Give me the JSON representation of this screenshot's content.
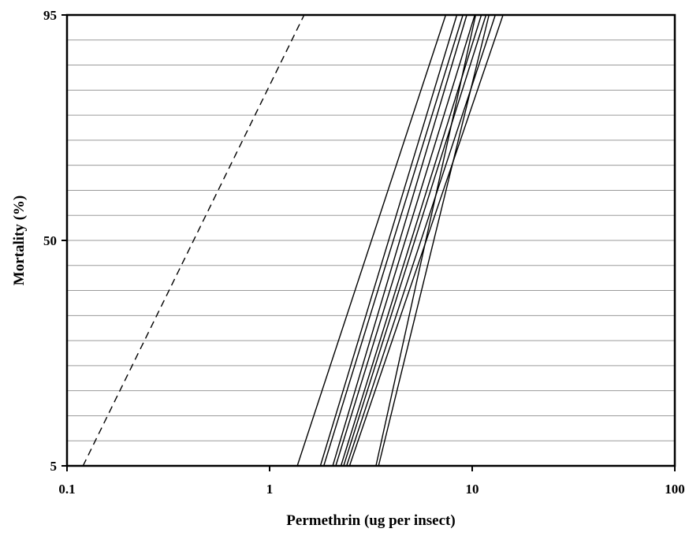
{
  "chart_data": {
    "type": "line",
    "xlabel": "Permethrin (ug per insect)",
    "ylabel": "Mortality (%)",
    "x_scale": "log",
    "xlim": [
      0.1,
      100
    ],
    "ylim": [
      5,
      95
    ],
    "x_ticks": [
      "0.1",
      "1",
      "10",
      "100"
    ],
    "y_ticks": [
      "5",
      "50",
      "95"
    ],
    "grid": "horizontal",
    "legend": "none",
    "series": [
      {
        "style": "dashed",
        "points": [
          [
            0.12,
            5
          ],
          [
            1.48,
            95
          ]
        ]
      },
      {
        "style": "solid",
        "points": [
          [
            1.37,
            5
          ],
          [
            7.4,
            95
          ]
        ]
      },
      {
        "style": "solid",
        "points": [
          [
            1.78,
            5
          ],
          [
            8.4,
            95
          ]
        ]
      },
      {
        "style": "solid",
        "points": [
          [
            1.85,
            5
          ],
          [
            9.0,
            95
          ]
        ]
      },
      {
        "style": "solid",
        "points": [
          [
            2.05,
            5
          ],
          [
            9.4,
            95
          ]
        ]
      },
      {
        "style": "solid",
        "points": [
          [
            2.12,
            5
          ],
          [
            10.3,
            95
          ]
        ]
      },
      {
        "style": "solid",
        "points": [
          [
            2.25,
            5
          ],
          [
            11.1,
            95
          ]
        ]
      },
      {
        "style": "solid",
        "points": [
          [
            2.32,
            5
          ],
          [
            11.7,
            95
          ]
        ]
      },
      {
        "style": "solid",
        "points": [
          [
            2.4,
            5
          ],
          [
            13.0,
            95
          ]
        ]
      },
      {
        "style": "solid",
        "points": [
          [
            2.48,
            5
          ],
          [
            14.2,
            95
          ]
        ]
      },
      {
        "style": "solid",
        "points": [
          [
            3.35,
            5
          ],
          [
            10.4,
            95
          ]
        ]
      },
      {
        "style": "solid",
        "points": [
          [
            3.45,
            5
          ],
          [
            12.1,
            95
          ]
        ]
      }
    ]
  }
}
